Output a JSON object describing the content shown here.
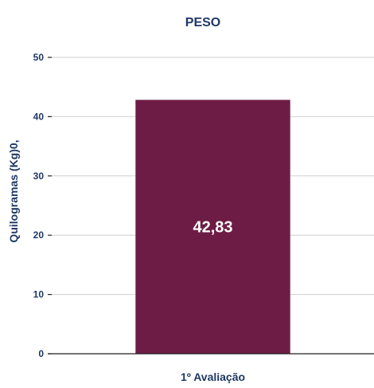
{
  "chart_data": {
    "type": "bar",
    "title": "PESO",
    "ylabel": "Quilogramas (Kg)0,",
    "xlabel": "",
    "categories": [
      "1º Avaliação"
    ],
    "values": [
      42.83
    ],
    "data_labels": [
      "42,83"
    ],
    "ylim": [
      0,
      50
    ],
    "yticks": [
      0,
      10,
      20,
      30,
      40,
      50
    ],
    "grid": true,
    "legend": "none",
    "bar_color": "#6d1d45",
    "text_color": "#1f3864"
  }
}
